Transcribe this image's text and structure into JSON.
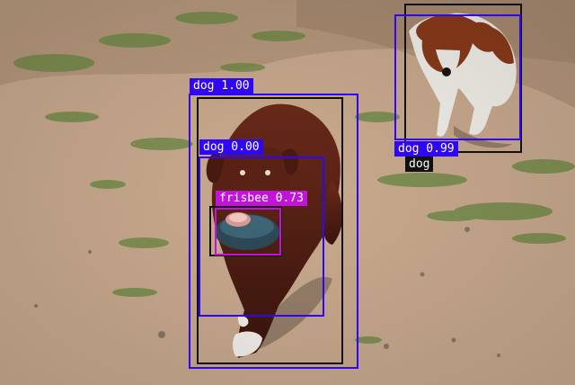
{
  "image": {
    "description_hidden": false
  },
  "colors": {
    "pred": "#2f07f5",
    "pred_frisbee": "#c014d6",
    "gt": "#111111",
    "label_text": "#ffffff"
  },
  "detections": [
    {
      "label": "dog 1.00",
      "kind": "prediction",
      "class": "dog"
    },
    {
      "label": "dog 0.00",
      "kind": "prediction",
      "class": "dog"
    },
    {
      "label": "frisbee 0.73",
      "kind": "prediction",
      "class": "frisbee"
    },
    {
      "label": "dog 0.99",
      "kind": "prediction",
      "class": "dog"
    },
    {
      "label": "dog",
      "kind": "ground-truth",
      "class": "dog"
    }
  ]
}
